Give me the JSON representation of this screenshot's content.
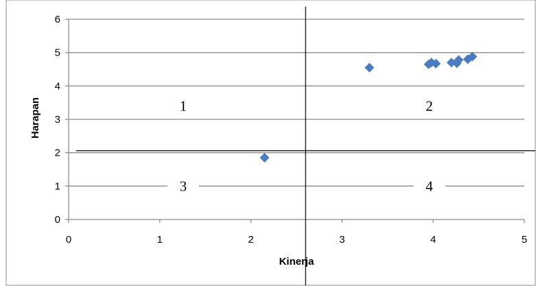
{
  "chart_data": {
    "type": "scatter",
    "title": "",
    "xlabel": "Kinerja",
    "ylabel": "Harapan",
    "xlim": [
      0,
      5
    ],
    "ylim": [
      0,
      6
    ],
    "x_ticks": [
      "0",
      "1",
      "2",
      "3",
      "4",
      "5"
    ],
    "y_ticks": [
      "0",
      "1",
      "2",
      "3",
      "4",
      "5",
      "6"
    ],
    "grid": true,
    "legend": "none",
    "marker": "diamond",
    "marker_color": "#4a7cc2",
    "points": [
      {
        "x": 2.15,
        "y": 1.85
      },
      {
        "x": 3.3,
        "y": 4.55
      },
      {
        "x": 3.95,
        "y": 4.65
      },
      {
        "x": 3.98,
        "y": 4.7
      },
      {
        "x": 4.03,
        "y": 4.67
      },
      {
        "x": 4.2,
        "y": 4.7
      },
      {
        "x": 4.26,
        "y": 4.68
      },
      {
        "x": 4.28,
        "y": 4.78
      },
      {
        "x": 4.38,
        "y": 4.8
      },
      {
        "x": 4.43,
        "y": 4.88
      }
    ],
    "quadrant_divider": {
      "x": 2.6,
      "y": 2.06
    },
    "quadrant_labels": [
      {
        "text": "1",
        "x": 1.25,
        "y": 3.4
      },
      {
        "text": "2",
        "x": 3.95,
        "y": 3.4
      },
      {
        "text": "3",
        "x": 1.25,
        "y": 1.0
      },
      {
        "text": "4",
        "x": 3.95,
        "y": 1.0
      }
    ]
  }
}
